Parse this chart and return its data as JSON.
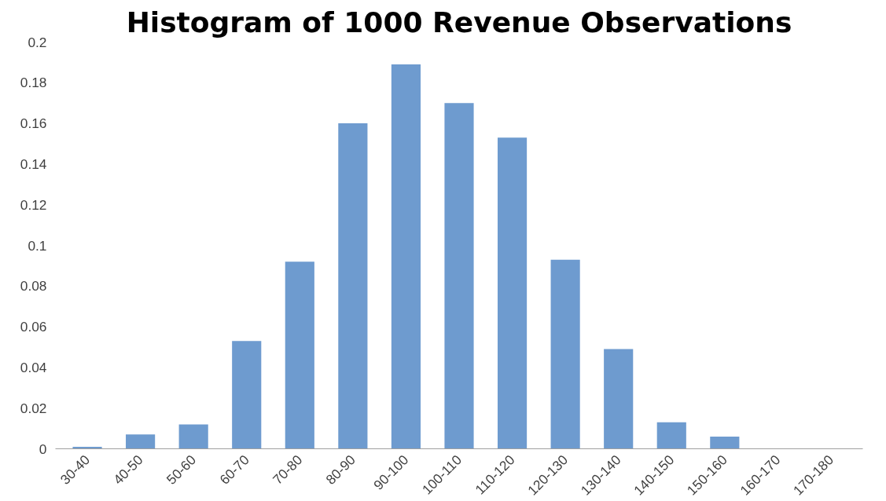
{
  "chart_data": {
    "type": "bar",
    "title": "Histogram of 1000 Revenue Observations",
    "categories": [
      "30-40",
      "40-50",
      "50-60",
      "60-70",
      "70-80",
      "80-90",
      "90-100",
      "100-110",
      "110-120",
      "120-130",
      "130-140",
      "140-150",
      "150-160",
      "160-170",
      "170-180"
    ],
    "values": [
      0.001,
      0.007,
      0.012,
      0.053,
      0.092,
      0.16,
      0.189,
      0.17,
      0.153,
      0.093,
      0.049,
      0.013,
      0.006,
      0,
      0
    ],
    "color": "#6e9bcf",
    "ylim": [
      0,
      0.2
    ],
    "yticks": [
      0,
      0.02,
      0.04,
      0.06,
      0.08,
      0.1,
      0.12,
      0.14,
      0.16,
      0.18,
      0.2
    ],
    "grid": false
  }
}
